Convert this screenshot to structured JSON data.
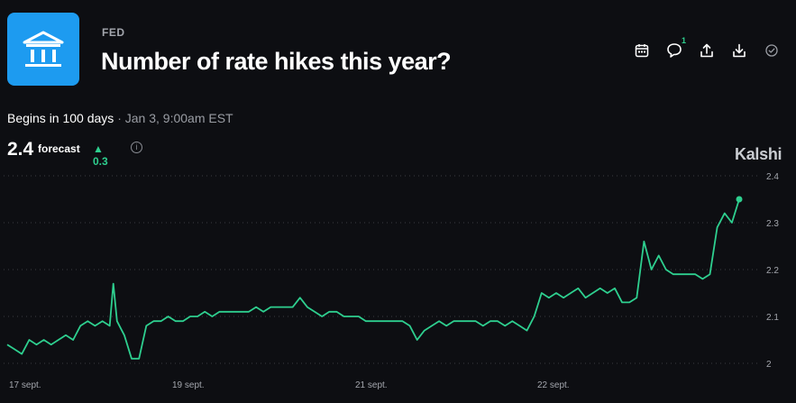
{
  "header": {
    "category": "FED",
    "title": "Number of rate hikes this year?",
    "comment_count": "1",
    "icons": [
      "calendar-icon",
      "comment-icon",
      "share-icon",
      "download-icon",
      "check-circle-icon"
    ]
  },
  "market": {
    "begins_text": "Begins in 100 days",
    "separator": "·",
    "date_text": "Jan 3, 9:00am EST"
  },
  "forecast": {
    "value": "2.4",
    "label": "forecast",
    "change": "▲ 0.3",
    "info": "i"
  },
  "brand": "Kalshi",
  "colors": {
    "accent": "#2ecf8f",
    "logo": "#1d9bf0",
    "background": "#0d0e12"
  },
  "chart_data": {
    "type": "line",
    "title": "",
    "xlabel": "",
    "ylabel": "",
    "ylim": [
      2.0,
      2.4
    ],
    "y_ticks": [
      "2",
      "2.1",
      "2.2",
      "2.3",
      "2.4"
    ],
    "x_ticks": [
      "17 sept.",
      "19 sept.",
      "21 sept.",
      "22 sept."
    ],
    "grid": "horizontal-dotted",
    "series": [
      {
        "x": [
          0,
          1,
          2,
          3,
          4,
          5,
          6,
          7,
          8,
          9,
          10,
          11,
          12,
          13,
          14,
          14.5,
          15,
          16,
          17,
          18,
          19,
          20,
          21,
          22,
          23,
          24,
          25,
          26,
          27,
          28,
          29,
          30,
          31,
          32,
          33,
          34,
          35,
          36,
          37,
          38,
          39,
          40,
          41,
          42,
          43,
          44,
          45,
          46,
          47,
          48,
          49,
          50,
          51,
          52,
          53,
          54,
          55,
          56,
          57,
          58,
          59,
          60,
          61,
          62,
          63,
          64,
          65,
          66,
          67,
          68,
          69,
          70,
          71,
          72,
          73,
          74,
          75,
          76,
          77,
          78,
          79,
          80,
          81,
          82,
          83,
          84,
          85,
          86,
          87,
          88,
          89,
          90,
          91,
          92,
          93,
          94,
          95,
          96,
          97,
          98,
          99,
          100
        ],
        "values": [
          2.04,
          2.03,
          2.02,
          2.05,
          2.04,
          2.05,
          2.04,
          2.05,
          2.06,
          2.05,
          2.08,
          2.09,
          2.08,
          2.09,
          2.08,
          2.17,
          2.09,
          2.06,
          2.01,
          2.01,
          2.08,
          2.09,
          2.09,
          2.1,
          2.09,
          2.09,
          2.1,
          2.1,
          2.11,
          2.1,
          2.11,
          2.11,
          2.11,
          2.11,
          2.11,
          2.12,
          2.11,
          2.12,
          2.12,
          2.12,
          2.12,
          2.14,
          2.12,
          2.11,
          2.1,
          2.11,
          2.11,
          2.1,
          2.1,
          2.1,
          2.09,
          2.09,
          2.09,
          2.09,
          2.09,
          2.09,
          2.08,
          2.05,
          2.07,
          2.08,
          2.09,
          2.08,
          2.09,
          2.09,
          2.09,
          2.09,
          2.08,
          2.09,
          2.09,
          2.08,
          2.09,
          2.08,
          2.07,
          2.1,
          2.15,
          2.14,
          2.15,
          2.14,
          2.15,
          2.16,
          2.14,
          2.15,
          2.16,
          2.15,
          2.16,
          2.13,
          2.13,
          2.14,
          2.26,
          2.2,
          2.23,
          2.2,
          2.19,
          2.19,
          2.19,
          2.19,
          2.18,
          2.19,
          2.29,
          2.32,
          2.3,
          2.35
        ]
      }
    ]
  }
}
